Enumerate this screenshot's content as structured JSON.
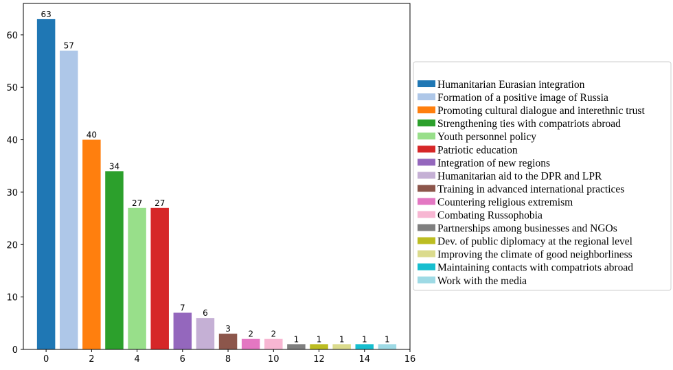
{
  "chart_data": {
    "type": "bar",
    "x": [
      0,
      1,
      2,
      3,
      4,
      5,
      6,
      7,
      8,
      9,
      10,
      11,
      12,
      13,
      14,
      15
    ],
    "values": [
      63,
      57,
      40,
      34,
      27,
      27,
      7,
      6,
      3,
      2,
      2,
      1,
      1,
      1,
      1,
      1
    ],
    "series": [
      {
        "name": "Humanitarian Eurasian integration",
        "color": "#1f77b4"
      },
      {
        "name": "Formation of a positive image of Russia",
        "color": "#aec7e8"
      },
      {
        "name": "Promoting cultural dialogue and interethnic trust",
        "color": "#ff7f0e"
      },
      {
        "name": "Strengthening ties with compatriots abroad",
        "color": "#2ca02c"
      },
      {
        "name": "Youth personnel policy",
        "color": "#98df8a"
      },
      {
        "name": "Patriotic education",
        "color": "#d62728"
      },
      {
        "name": "Integration of new regions",
        "color": "#9467bd"
      },
      {
        "name": "Humanitarian aid to the DPR and LPR",
        "color": "#c5b0d5"
      },
      {
        "name": "Training in advanced international practices",
        "color": "#8c564b"
      },
      {
        "name": "Countering religious extremism",
        "color": "#e377c2"
      },
      {
        "name": "Combating Russophobia",
        "color": "#f7b6d2"
      },
      {
        "name": "Partnerships among businesses and NGOs",
        "color": "#7f7f7f"
      },
      {
        "name": "Dev. of public diplomacy at the regional level",
        "color": "#bcbd22"
      },
      {
        "name": "Improving the climate of good neighborliness",
        "color": "#dbdb8d"
      },
      {
        "name": "Maintaining contacts with compatriots abroad",
        "color": "#17becf"
      },
      {
        "name": "Work with the media",
        "color": "#9edae5"
      }
    ],
    "xlim": [
      -1,
      16
    ],
    "ylim": [
      0,
      66
    ],
    "xticks": [
      0,
      2,
      4,
      6,
      8,
      10,
      12,
      14,
      16
    ],
    "yticks": [
      0,
      10,
      20,
      30,
      40,
      50,
      60
    ],
    "title": "",
    "xlabel": "",
    "ylabel": "",
    "grid": false,
    "legend_position": "right"
  }
}
